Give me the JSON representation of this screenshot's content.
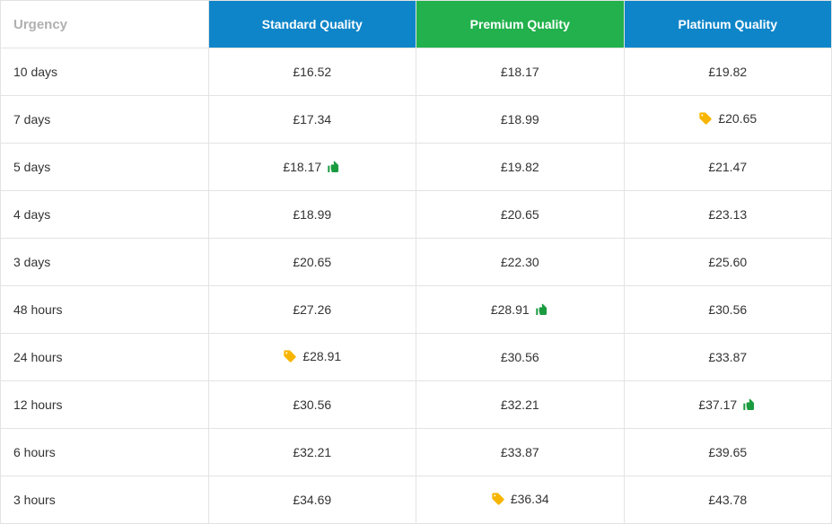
{
  "colors": {
    "header_urgency_text": "#b0b0b0",
    "header_standard_bg": "#0e85c9",
    "header_premium_bg": "#22b14c",
    "header_platinum_bg": "#0e85c9",
    "border": "#e3e3e3",
    "text": "#333333",
    "thumb_fill": "#1a9b3f",
    "tag_fill": "#f7b500"
  },
  "headers": {
    "urgency": "Urgency",
    "standard": "Standard Quality",
    "premium": "Premium Quality",
    "platinum": "Platinum Quality"
  },
  "rows": [
    {
      "urgency": "10 days",
      "standard": {
        "price": "£16.52",
        "icon": null
      },
      "premium": {
        "price": "£18.17",
        "icon": null
      },
      "platinum": {
        "price": "£19.82",
        "icon": null
      }
    },
    {
      "urgency": "7 days",
      "standard": {
        "price": "£17.34",
        "icon": null
      },
      "premium": {
        "price": "£18.99",
        "icon": null
      },
      "platinum": {
        "price": "£20.65",
        "icon": "tag"
      }
    },
    {
      "urgency": "5 days",
      "standard": {
        "price": "£18.17",
        "icon": "thumb"
      },
      "premium": {
        "price": "£19.82",
        "icon": null
      },
      "platinum": {
        "price": "£21.47",
        "icon": null
      }
    },
    {
      "urgency": "4 days",
      "standard": {
        "price": "£18.99",
        "icon": null
      },
      "premium": {
        "price": "£20.65",
        "icon": null
      },
      "platinum": {
        "price": "£23.13",
        "icon": null
      }
    },
    {
      "urgency": "3 days",
      "standard": {
        "price": "£20.65",
        "icon": null
      },
      "premium": {
        "price": "£22.30",
        "icon": null
      },
      "platinum": {
        "price": "£25.60",
        "icon": null
      }
    },
    {
      "urgency": "48 hours",
      "standard": {
        "price": "£27.26",
        "icon": null
      },
      "premium": {
        "price": "£28.91",
        "icon": "thumb"
      },
      "platinum": {
        "price": "£30.56",
        "icon": null
      }
    },
    {
      "urgency": "24 hours",
      "standard": {
        "price": "£28.91",
        "icon": "tag"
      },
      "premium": {
        "price": "£30.56",
        "icon": null
      },
      "platinum": {
        "price": "£33.87",
        "icon": null
      }
    },
    {
      "urgency": "12 hours",
      "standard": {
        "price": "£30.56",
        "icon": null
      },
      "premium": {
        "price": "£32.21",
        "icon": null
      },
      "platinum": {
        "price": "£37.17",
        "icon": "thumb"
      }
    },
    {
      "urgency": "6 hours",
      "standard": {
        "price": "£32.21",
        "icon": null
      },
      "premium": {
        "price": "£33.87",
        "icon": null
      },
      "platinum": {
        "price": "£39.65",
        "icon": null
      }
    },
    {
      "urgency": "3 hours",
      "standard": {
        "price": "£34.69",
        "icon": null
      },
      "premium": {
        "price": "£36.34",
        "icon": "tag"
      },
      "platinum": {
        "price": "£43.78",
        "icon": null
      }
    }
  ]
}
